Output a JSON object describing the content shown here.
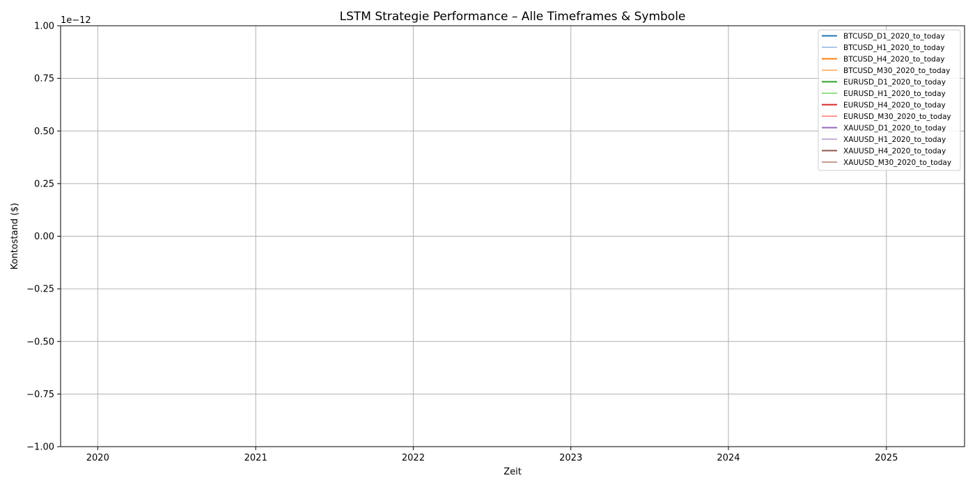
{
  "chart_data": {
    "type": "line",
    "title": "LSTM Strategie Performance – Alle Timeframes & Symbole",
    "xlabel": "Zeit",
    "ylabel": "Kontostand ($)",
    "y_offset_text": "1e−12",
    "y_scale_factor": 1e-12,
    "xlim": [
      "2019-10-07",
      "2025-07-01"
    ],
    "ylim": [
      -1.0,
      1.0
    ],
    "grid": true,
    "legend_position": "top-right",
    "x_ticks": [
      {
        "value": "2020-01-01",
        "label": "2020"
      },
      {
        "value": "2021-01-01",
        "label": "2021"
      },
      {
        "value": "2022-01-01",
        "label": "2022"
      },
      {
        "value": "2023-01-01",
        "label": "2023"
      },
      {
        "value": "2024-01-01",
        "label": "2024"
      },
      {
        "value": "2025-01-01",
        "label": "2025"
      }
    ],
    "y_ticks": [
      {
        "value": 1.0,
        "label": "1.00"
      },
      {
        "value": 0.75,
        "label": "0.75"
      },
      {
        "value": 0.5,
        "label": "0.50"
      },
      {
        "value": 0.25,
        "label": "0.25"
      },
      {
        "value": 0.0,
        "label": "0.00"
      },
      {
        "value": -0.25,
        "label": "−0.25"
      },
      {
        "value": -0.5,
        "label": "−0.50"
      },
      {
        "value": -0.75,
        "label": "−0.75"
      },
      {
        "value": -1.0,
        "label": "−1.00"
      }
    ],
    "series": [
      {
        "name": "BTCUSD_D1_2020_to_today",
        "color": "#1f77b4",
        "x": [],
        "y": []
      },
      {
        "name": "BTCUSD_H1_2020_to_today",
        "color": "#aec7e8",
        "x": [],
        "y": []
      },
      {
        "name": "BTCUSD_H4_2020_to_today",
        "color": "#ff7f0e",
        "x": [],
        "y": []
      },
      {
        "name": "BTCUSD_M30_2020_to_today",
        "color": "#ffbb78",
        "x": [],
        "y": []
      },
      {
        "name": "EURUSD_D1_2020_to_today",
        "color": "#2ca02c",
        "x": [],
        "y": []
      },
      {
        "name": "EURUSD_H1_2020_to_today",
        "color": "#98df8a",
        "x": [],
        "y": []
      },
      {
        "name": "EURUSD_H4_2020_to_today",
        "color": "#d62728",
        "x": [],
        "y": []
      },
      {
        "name": "EURUSD_M30_2020_to_today",
        "color": "#ff9896",
        "x": [],
        "y": []
      },
      {
        "name": "XAUUSD_D1_2020_to_today",
        "color": "#9467bd",
        "x": [],
        "y": []
      },
      {
        "name": "XAUUSD_H1_2020_to_today",
        "color": "#c5b0d5",
        "x": [],
        "y": []
      },
      {
        "name": "XAUUSD_H4_2020_to_today",
        "color": "#8c564b",
        "x": [],
        "y": []
      },
      {
        "name": "XAUUSD_M30_2020_to_today",
        "color": "#c49c94",
        "x": [],
        "y": []
      }
    ]
  }
}
